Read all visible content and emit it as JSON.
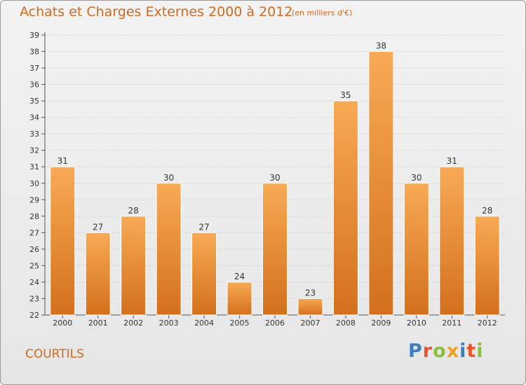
{
  "title": "Achats et Charges Externes 2000 à 2012",
  "subtitle": "(en milliers d'€)",
  "city": "COURTILS",
  "logo": {
    "text": "Proxiti",
    "colors": [
      "#3a7fc1",
      "#e8542c",
      "#8bbf3c",
      "#f0a020",
      "#3a7fc1",
      "#e8542c",
      "#8bbf3c"
    ]
  },
  "colors": {
    "bar_light": "#f8aa55",
    "bar_dark": "#d4701c",
    "title": "#d2691e"
  },
  "chart_data": {
    "type": "bar",
    "title": "Achats et Charges Externes 2000 à 2012",
    "subtitle": "(en milliers d'€)",
    "categories": [
      "2000",
      "2001",
      "2002",
      "2003",
      "2004",
      "2005",
      "2006",
      "2007",
      "2008",
      "2009",
      "2010",
      "2011",
      "2012"
    ],
    "values": [
      31,
      27,
      28,
      30,
      27,
      24,
      30,
      23,
      35,
      38,
      30,
      31,
      28
    ],
    "ylim": [
      22,
      39
    ],
    "yticks": [
      22,
      23,
      24,
      25,
      26,
      27,
      28,
      29,
      30,
      31,
      32,
      33,
      34,
      35,
      36,
      37,
      38,
      39
    ],
    "grid": true,
    "xlabel": "",
    "ylabel": ""
  }
}
